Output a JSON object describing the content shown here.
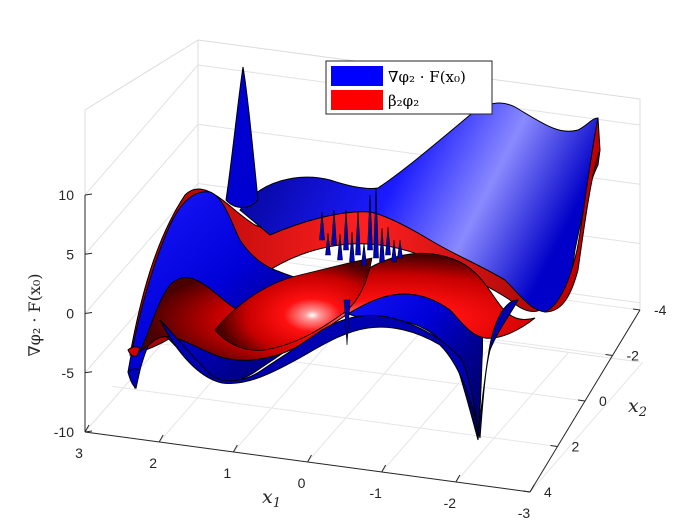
{
  "chart_data": {
    "type": "surface",
    "title": "",
    "xlabel": "x_1",
    "ylabel": "x_2",
    "zlabel": "∇φ₂ · F(x₀)",
    "xlim": [
      -3,
      3
    ],
    "ylim": [
      -4,
      4
    ],
    "zlim": [
      -10,
      10
    ],
    "x_ticks": [
      "3",
      "2",
      "1",
      "0",
      "-1",
      "-2",
      "-3"
    ],
    "y_ticks": [
      "-4",
      "-2",
      "0",
      "2",
      "4"
    ],
    "z_ticks": [
      "10",
      "5",
      "0",
      "-5",
      "-10"
    ],
    "grid": true,
    "legend_position": "top-center",
    "series": [
      {
        "name": "∇φ₂ · F(x₀)",
        "color": "#0000ff"
      },
      {
        "name": "β₂φ₂",
        "color": "#ff0000"
      }
    ],
    "edge_values": [
      {
        "x": 3,
        "y": 4,
        "blue": -6,
        "red": -3.5
      },
      {
        "x": -3,
        "y": 4,
        "blue": -10,
        "red": -9
      },
      {
        "x": -3,
        "y": -4,
        "blue": 15,
        "red": 13
      },
      {
        "x": 3,
        "y": -4,
        "blue": 20,
        "red": 9
      }
    ]
  }
}
